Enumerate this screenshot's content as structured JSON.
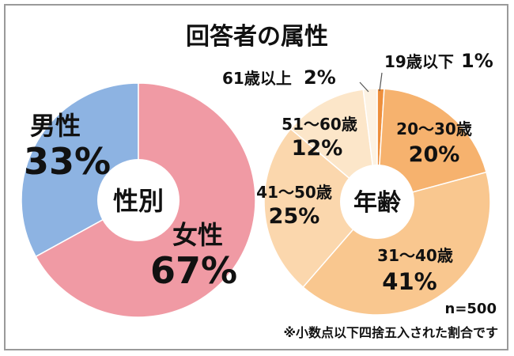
{
  "title": "回答者の属性",
  "note_n": "n=500",
  "note_rounding": "※小数点以下四捨五入された割合です",
  "chart_data": [
    {
      "type": "pie",
      "style": "donut",
      "center_label": "性別",
      "categories": [
        "男性",
        "女性"
      ],
      "values": [
        33,
        67
      ],
      "value_labels": [
        "33%",
        "67%"
      ],
      "colors": [
        "#8db3e2",
        "#f09aa4"
      ]
    },
    {
      "type": "pie",
      "style": "donut",
      "center_label": "年齢",
      "categories": [
        "19歳以下",
        "20～30歳",
        "31～40歳",
        "41～50歳",
        "51～60歳",
        "61歳以上"
      ],
      "values": [
        1,
        20,
        41,
        25,
        12,
        2
      ],
      "value_labels": [
        "1%",
        "20%",
        "41%",
        "25%",
        "12%",
        "2%"
      ],
      "colors": [
        "#ee8f3c",
        "#f6b26e",
        "#f9c78f",
        "#fbd7ad",
        "#fce6c9",
        "#fdf2e2"
      ]
    }
  ]
}
